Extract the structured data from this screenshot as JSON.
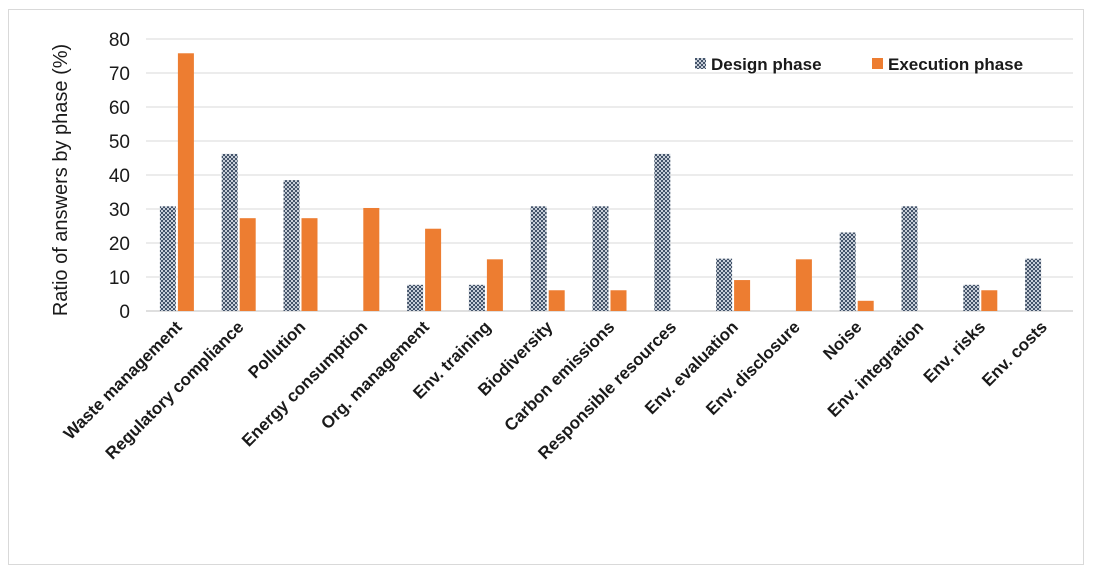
{
  "chart_data": {
    "type": "bar",
    "ylabel": "Ratio of answers by phase (%)",
    "xlabel": "",
    "ylim": [
      0,
      80
    ],
    "yticks": [
      0,
      10,
      20,
      30,
      40,
      50,
      60,
      70,
      80
    ],
    "grid": true,
    "legend_position": "top-right",
    "categories": [
      "Waste management",
      "Regulatory compliance",
      "Pollution",
      "Energy consumption",
      "Org. management",
      "Env. training",
      "Biodiversity",
      "Carbon emissions",
      "Responsible resources",
      "Env. evaluation",
      "Env. disclosure",
      "Noise",
      "Env. integration",
      "Env. risks",
      "Env. costs"
    ],
    "series": [
      {
        "name": "Design phase",
        "color": "#44546a",
        "pattern": "dotted",
        "values": [
          30.8,
          46.2,
          38.5,
          0,
          7.7,
          7.7,
          30.8,
          30.8,
          46.2,
          15.4,
          0,
          23.1,
          30.8,
          7.7,
          15.4
        ]
      },
      {
        "name": "Execution phase",
        "color": "#ed7d31",
        "pattern": "solid",
        "values": [
          75.8,
          27.3,
          27.3,
          30.3,
          24.2,
          15.2,
          6.1,
          6.1,
          0,
          9.1,
          15.2,
          3.0,
          0,
          6.1,
          0
        ]
      }
    ]
  }
}
